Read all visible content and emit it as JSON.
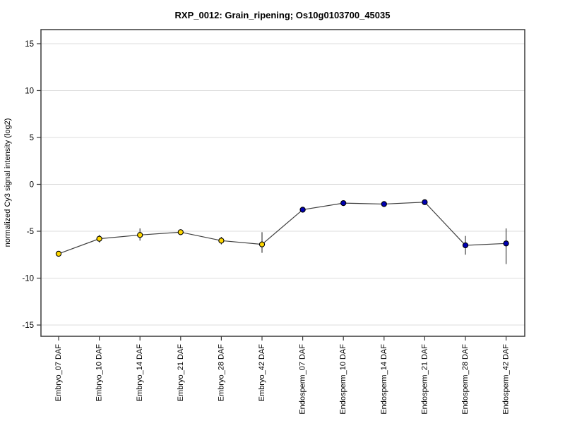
{
  "chart_data": {
    "type": "line",
    "title": "RXP_0012: Grain_ripening; Os10g0103700_45035",
    "ylabel": "normalized Cy3 signal intensity (log2)",
    "xlabel": "",
    "ylim": [
      -16.2,
      16.5
    ],
    "yticks": [
      -15,
      -10,
      -5,
      0,
      5,
      10,
      15
    ],
    "grid": true,
    "legend_position": "none",
    "categories": [
      "Embryo_07 DAF",
      "Embryo_10 DAF",
      "Embryo_14 DAF",
      "Embryo_21 DAF",
      "Embryo_28 DAF",
      "Embryo_42 DAF",
      "Endosperm_07 DAF",
      "Endosperm_10 DAF",
      "Endosperm_14 DAF",
      "Endosperm_21 DAF",
      "Endosperm_28 DAF",
      "Endosperm_42 DAF"
    ],
    "series": [
      {
        "name": "normalized Cy3 signal intensity",
        "values": [
          -7.4,
          -5.8,
          -5.4,
          -5.1,
          -6.0,
          -6.4,
          -2.7,
          -2.0,
          -2.1,
          -1.9,
          -6.5,
          -6.3
        ],
        "err_low": [
          null,
          -6.2,
          -6.0,
          -5.3,
          -6.4,
          -7.3,
          null,
          -2.2,
          null,
          null,
          -7.5,
          -8.5
        ],
        "err_high": [
          null,
          -5.4,
          -4.7,
          -4.8,
          -5.6,
          -5.1,
          null,
          -1.8,
          null,
          null,
          -5.5,
          -4.7
        ],
        "marker_groups": [
          "embryo",
          "embryo",
          "embryo",
          "embryo",
          "embryo",
          "embryo",
          "endosperm",
          "endosperm",
          "endosperm",
          "endosperm",
          "endosperm",
          "endosperm"
        ]
      }
    ],
    "colors": {
      "embryo_marker": "#FFD700",
      "endosperm_marker": "#0000B3",
      "marker_outline": "#000000",
      "line": "#404040",
      "error_bar": "#3F3F3F",
      "gridline": "#DCDCDC",
      "axis_box": "#3A3A3A",
      "text": "#000000"
    }
  }
}
